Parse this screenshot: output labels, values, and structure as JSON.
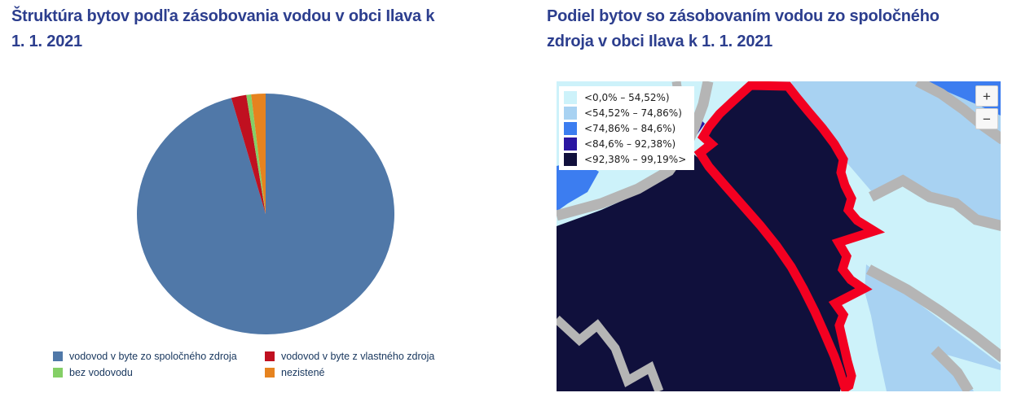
{
  "left_panel": {
    "title": "Štruktúra bytov podľa zásobovania vodou v obci Ilava k 1. 1. 2021",
    "legend": [
      {
        "label": "vodovod v byte zo spoločného zdroja",
        "color": "#5078a8"
      },
      {
        "label": "vodovod v byte z vlastného zdroja",
        "color": "#c01020"
      },
      {
        "label": "bez vodovodu",
        "color": "#84cf66"
      },
      {
        "label": "nezistené",
        "color": "#e6831f"
      }
    ]
  },
  "map_panel": {
    "title": "Podiel bytov so zásobovaním vodou zo spoločného zdroja v obci Ilava k 1. 1. 2021",
    "legend": [
      {
        "label": "<0,0% – 54,52%)",
        "color": "#cdf2fa"
      },
      {
        "label": "<54,52% – 74,86%)",
        "color": "#a8d2f2"
      },
      {
        "label": "<74,86% – 84,6%)",
        "color": "#3c7df0"
      },
      {
        "label": "<84,6% – 92,38%)",
        "color": "#2a16a2"
      },
      {
        "label": "<92,38% – 99,19%>",
        "color": "#10103c"
      }
    ],
    "zoom_in": "+",
    "zoom_out": "−",
    "road_color": "#b5b5b5",
    "border_color": "#f30021",
    "highlighted_region": "Ilava"
  },
  "colors": {
    "title": "#2c3e8e",
    "legend_text": "#17365d",
    "page_background": "#ffffff"
  },
  "chart_data": [
    {
      "type": "pie",
      "title": "Štruktúra bytov podľa zásobovania vodou v obci Ilava k 1. 1. 2021",
      "unit": "%",
      "values_estimated_from_pixels": true,
      "start_angle_deg": -90,
      "direction": "clockwise",
      "legend_position": "bottom",
      "series": [
        {
          "label": "vodovod v byte zo spoločného zdroja",
          "value": 95.7,
          "color": "#5078a8"
        },
        {
          "label": "vodovod v byte z vlastného zdroja",
          "value": 1.9,
          "color": "#c01020"
        },
        {
          "label": "bez vodovodu",
          "value": 0.6,
          "color": "#84cf66"
        },
        {
          "label": "nezistené",
          "value": 1.8,
          "color": "#e6831f"
        }
      ]
    },
    {
      "type": "choropleth_map",
      "title": "Podiel bytov so zásobovaním vodou zo spoločného zdroja v obci Ilava k 1. 1. 2021",
      "legend_position": "top-left",
      "classes": [
        {
          "range": "<0,0% – 54,52%)",
          "color": "#cdf2fa"
        },
        {
          "range": "<54,52% – 74,86%)",
          "color": "#a8d2f2"
        },
        {
          "range": "<74,86% – 84,6%)",
          "color": "#3c7df0"
        },
        {
          "range": "<84,6% – 92,38%)",
          "color": "#2a16a2"
        },
        {
          "range": "<92,38% – 99,19%>",
          "color": "#10103c"
        }
      ],
      "highlighted_region": "Ilava",
      "highlighted_region_class": "<92,38% – 99,19%>",
      "highlight_outline_color": "#f30021"
    }
  ]
}
